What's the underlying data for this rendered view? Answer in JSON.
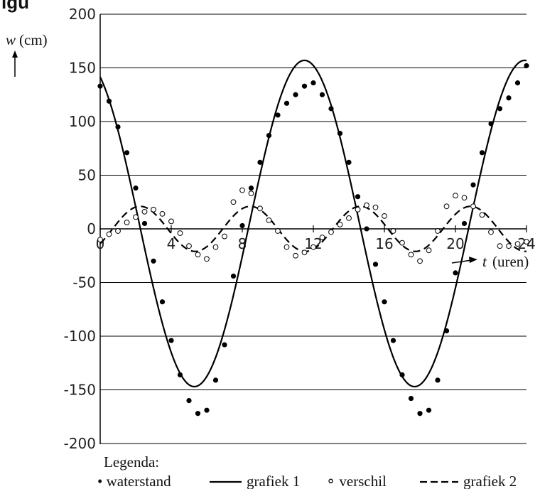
{
  "cut_title": "igu",
  "legend": {
    "title": "Legenda:",
    "items": [
      {
        "label": "• waterstand"
      },
      {
        "label": "grafiek 1"
      },
      {
        "label": "∘ verschil"
      },
      {
        "label": "grafiek 2"
      }
    ]
  },
  "chart_data": {
    "type": "line",
    "ylabel_var": "w",
    "ylabel_unit": "(cm)",
    "xlabel_var": "t",
    "xlabel_unit": "(uren)",
    "x_ticks": [
      "0",
      "4",
      "8",
      "12",
      "16",
      "20",
      "24"
    ],
    "y_ticks": [
      "200",
      "150",
      "100",
      "50",
      "0",
      "-50",
      "-100",
      "-150",
      "-200"
    ],
    "xlim": [
      0,
      24
    ],
    "ylim": [
      -200,
      200
    ],
    "grid": "horizontal",
    "series": [
      {
        "name": "grafiek 1",
        "style": "solid",
        "color": "#000000",
        "function": "w = 5 + 152*cos(2*pi*(t-11.5)/12.4)"
      },
      {
        "name": "grafiek 2",
        "style": "dashed",
        "color": "#000000",
        "function": "w = 21*sin(2*pi*(t-0.7)/6.2)"
      },
      {
        "name": "waterstand",
        "marker": "filled-circle",
        "x": [
          0,
          0.5,
          1,
          1.5,
          2,
          2.5,
          3,
          3.5,
          4,
          4.5,
          5,
          5.5,
          6,
          6.5,
          7,
          7.5,
          8,
          8.5,
          9,
          9.5,
          10,
          10.5,
          11,
          11.5,
          12,
          12.5,
          13,
          13.5,
          14,
          14.5,
          15,
          15.5,
          16,
          16.5,
          17,
          17.5,
          18,
          18.5,
          19,
          19.5,
          20,
          20.5,
          21,
          21.5,
          22,
          22.5,
          23,
          23.5,
          24
        ],
        "y": [
          133,
          119,
          95,
          71,
          38,
          5,
          -30,
          -68,
          -104,
          -136,
          -160,
          -172,
          -169,
          -141,
          -108,
          -44,
          3,
          38,
          62,
          87,
          106,
          117,
          125,
          133,
          136,
          125,
          112,
          89,
          62,
          30,
          0,
          -33,
          -68,
          -104,
          -136,
          -158,
          -172,
          -169,
          -141,
          -95,
          -41,
          5,
          41,
          71,
          98,
          112,
          122,
          136,
          152
        ]
      },
      {
        "name": "verschil",
        "marker": "open-circle",
        "x": [
          0,
          0.5,
          1,
          1.5,
          2,
          2.5,
          3,
          3.5,
          4,
          4.5,
          5,
          5.5,
          6,
          6.5,
          7,
          7.5,
          8,
          8.5,
          9,
          9.5,
          10,
          10.5,
          11,
          11.5,
          12,
          12.5,
          13,
          13.5,
          14,
          14.5,
          15,
          15.5,
          16,
          16.5,
          17,
          17.5,
          18,
          18.5,
          19,
          19.5,
          20,
          20.5,
          21,
          21.5,
          22,
          22.5,
          23,
          23.5,
          24
        ],
        "y": [
          -10,
          -5,
          -2,
          6,
          11,
          16,
          18,
          14,
          7,
          -4,
          -16,
          -24,
          -28,
          -17,
          -7,
          25,
          36,
          33,
          19,
          8,
          -2,
          -17,
          -25,
          -22,
          -17,
          -8,
          -3,
          4,
          10,
          18,
          22,
          20,
          12,
          -2,
          -13,
          -24,
          -30,
          -20,
          -2,
          21,
          31,
          29,
          21,
          13,
          -3,
          -16,
          -16,
          -14,
          -12
        ]
      }
    ]
  }
}
